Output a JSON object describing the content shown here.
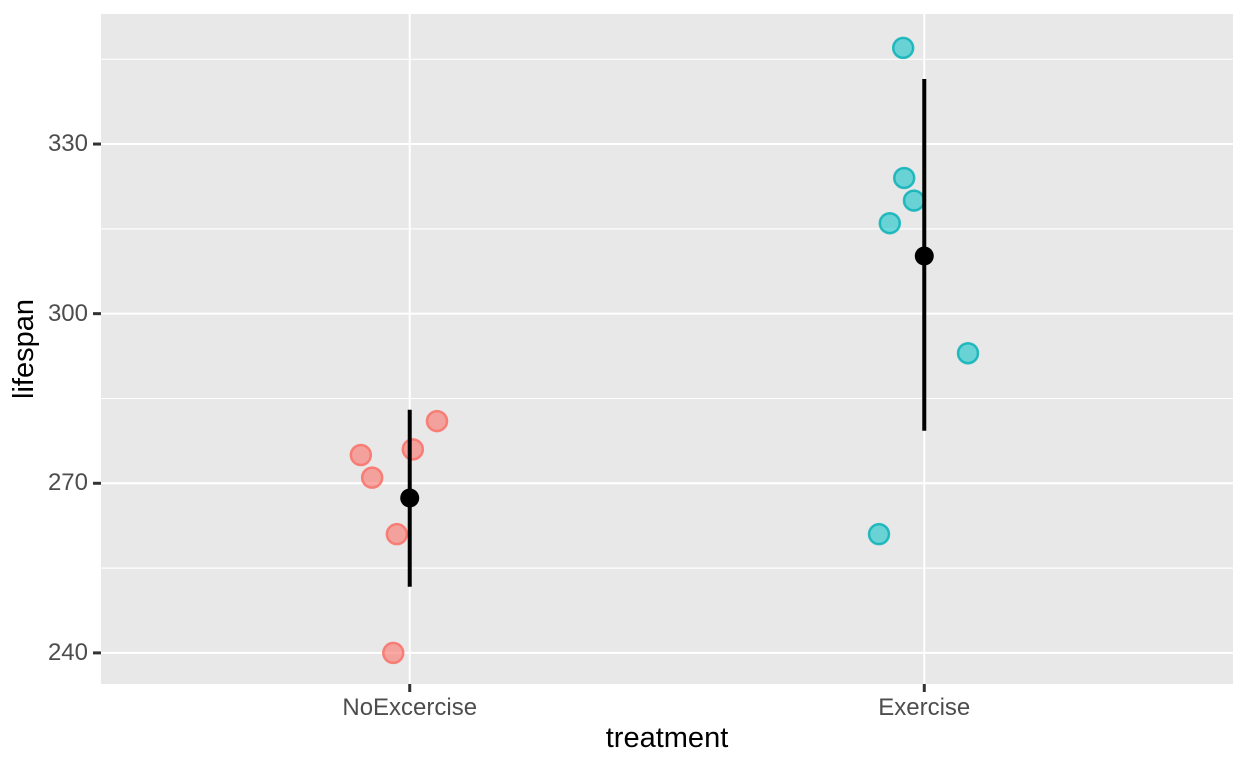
{
  "figure": {
    "background": "#FFFFFF",
    "panel_background": "#E8E8E8",
    "grid_color": "#FFFFFF",
    "tick_mark_color": "#333333",
    "tick_label_color": "#4D4D4D",
    "axis_title_color": "#000000",
    "mean_marker_color": "#000000"
  },
  "chart_data": {
    "type": "scatter",
    "subtype": "jittered-points-with-mean-and-sd-bar",
    "title": "",
    "xlabel": "treatment",
    "ylabel": "lifespan",
    "categories": [
      "NoExcercise",
      "Exercise"
    ],
    "x_positions": [
      1,
      2
    ],
    "xlim": [
      0.4,
      2.6
    ],
    "ylim": [
      234.5,
      353.0
    ],
    "y_ticks": [
      240,
      270,
      300,
      330
    ],
    "y_minor_step": 15,
    "grid": {
      "major": true,
      "minor": true,
      "legend": "none"
    },
    "series": [
      {
        "name": "NoExcercise",
        "color": "#F8766D",
        "fill": "rgba(248,118,109,0.62)",
        "stroke": "rgba(248,118,109,0.9)",
        "points": [
          {
            "lifespan": 281,
            "jx": 1.053
          },
          {
            "lifespan": 276,
            "jx": 1.006
          },
          {
            "lifespan": 275,
            "jx": 0.905
          },
          {
            "lifespan": 271,
            "jx": 0.927
          },
          {
            "lifespan": 261,
            "jx": 0.975
          },
          {
            "lifespan": 240,
            "jx": 0.968
          }
        ],
        "mean": 267.4,
        "sd_low": 251.7,
        "sd_high": 283.0
      },
      {
        "name": "Exercise",
        "color": "#00BFC4",
        "fill": "rgba(0,191,196,0.55)",
        "stroke": "rgba(0,175,180,0.8)",
        "points": [
          {
            "lifespan": 347,
            "jx": 1.959
          },
          {
            "lifespan": 324,
            "jx": 1.961
          },
          {
            "lifespan": 320,
            "jx": 1.98
          },
          {
            "lifespan": 316,
            "jx": 1.933
          },
          {
            "lifespan": 293,
            "jx": 2.085
          },
          {
            "lifespan": 261,
            "jx": 1.912
          }
        ],
        "mean": 310.2,
        "sd_low": 279.3,
        "sd_high": 341.5
      }
    ]
  }
}
